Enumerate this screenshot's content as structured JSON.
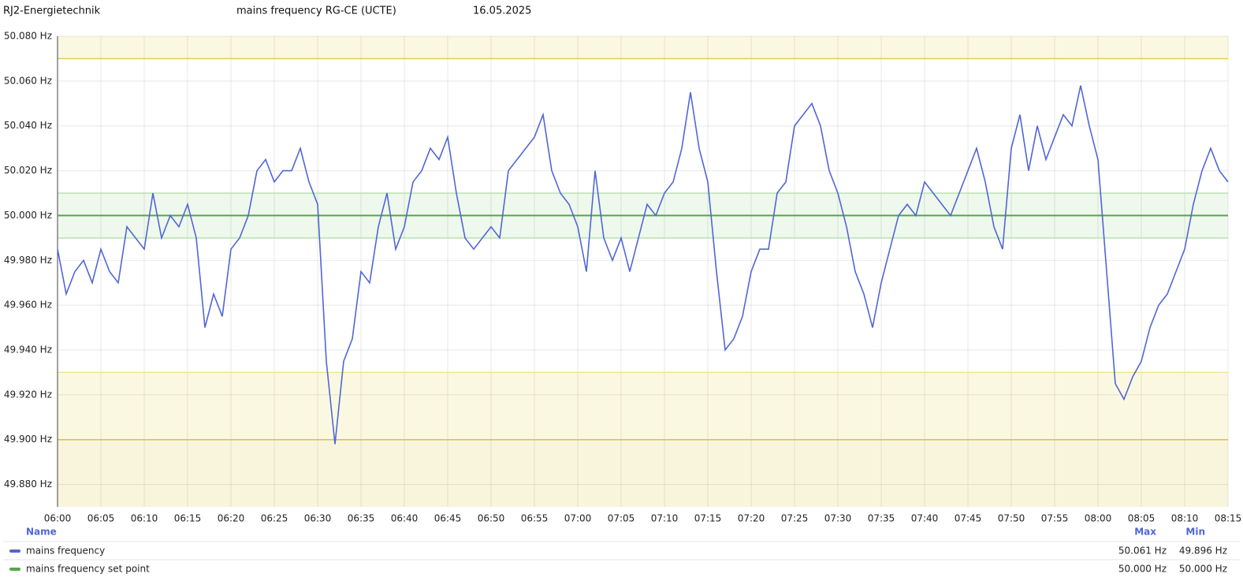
{
  "header": {
    "site": "RJ2-Energietechnik",
    "title": "mains frequency RG-CE (UCTE)",
    "date": "16.05.2025"
  },
  "chart_data": {
    "type": "line",
    "x": [
      "06:00",
      "06:01",
      "06:02",
      "06:03",
      "06:04",
      "06:05",
      "06:06",
      "06:07",
      "06:08",
      "06:09",
      "06:10",
      "06:11",
      "06:12",
      "06:13",
      "06:14",
      "06:15",
      "06:16",
      "06:17",
      "06:18",
      "06:19",
      "06:20",
      "06:21",
      "06:22",
      "06:23",
      "06:24",
      "06:25",
      "06:26",
      "06:27",
      "06:28",
      "06:29",
      "06:30",
      "06:31",
      "06:32",
      "06:33",
      "06:34",
      "06:35",
      "06:36",
      "06:37",
      "06:38",
      "06:39",
      "06:40",
      "06:41",
      "06:42",
      "06:43",
      "06:44",
      "06:45",
      "06:46",
      "06:47",
      "06:48",
      "06:49",
      "06:50",
      "06:51",
      "06:52",
      "06:53",
      "06:54",
      "06:55",
      "06:56",
      "06:57",
      "06:58",
      "06:59",
      "07:00",
      "07:01",
      "07:02",
      "07:03",
      "07:04",
      "07:05",
      "07:06",
      "07:07",
      "07:08",
      "07:09",
      "07:10",
      "07:11",
      "07:12",
      "07:13",
      "07:14",
      "07:15",
      "07:16",
      "07:17",
      "07:18",
      "07:19",
      "07:20",
      "07:21",
      "07:22",
      "07:23",
      "07:24",
      "07:25",
      "07:26",
      "07:27",
      "07:28",
      "07:29",
      "07:30",
      "07:31",
      "07:32",
      "07:33",
      "07:34",
      "07:35",
      "07:36",
      "07:37",
      "07:38",
      "07:39",
      "07:40",
      "07:41",
      "07:42",
      "07:43",
      "07:44",
      "07:45",
      "07:46",
      "07:47",
      "07:48",
      "07:49",
      "07:50",
      "07:51",
      "07:52",
      "07:53",
      "07:54",
      "07:55",
      "07:56",
      "07:57",
      "07:58",
      "07:59",
      "08:00",
      "08:01",
      "08:02",
      "08:03",
      "08:04",
      "08:05",
      "08:06",
      "08:07",
      "08:08",
      "08:09",
      "08:10",
      "08:11",
      "08:12",
      "08:13",
      "08:14",
      "08:15"
    ],
    "series": [
      {
        "name": "mains frequency",
        "color": "#5166d6",
        "values": [
          49.985,
          49.965,
          49.975,
          49.98,
          49.97,
          49.985,
          49.975,
          49.97,
          49.995,
          49.99,
          49.985,
          50.01,
          49.99,
          50.0,
          49.995,
          50.005,
          49.99,
          49.95,
          49.965,
          49.955,
          49.985,
          49.99,
          50.0,
          50.02,
          50.025,
          50.015,
          50.02,
          50.02,
          50.03,
          50.015,
          50.005,
          49.935,
          49.898,
          49.935,
          49.945,
          49.975,
          49.97,
          49.995,
          50.01,
          49.985,
          49.995,
          50.015,
          50.02,
          50.03,
          50.025,
          50.035,
          50.01,
          49.99,
          49.985,
          49.99,
          49.995,
          49.99,
          50.02,
          50.025,
          50.03,
          50.035,
          50.045,
          50.02,
          50.01,
          50.005,
          49.995,
          49.975,
          50.02,
          49.99,
          49.98,
          49.99,
          49.975,
          49.99,
          50.005,
          50.0,
          50.01,
          50.015,
          50.03,
          50.055,
          50.03,
          50.015,
          49.975,
          49.94,
          49.945,
          49.955,
          49.975,
          49.985,
          49.985,
          50.01,
          50.015,
          50.04,
          50.045,
          50.05,
          50.04,
          50.02,
          50.01,
          49.995,
          49.975,
          49.965,
          49.95,
          49.97,
          49.985,
          50.0,
          50.005,
          50.0,
          50.015,
          50.01,
          50.005,
          50.0,
          50.01,
          50.02,
          50.03,
          50.015,
          49.995,
          49.985,
          50.03,
          50.045,
          50.02,
          50.04,
          50.025,
          50.035,
          50.045,
          50.04,
          50.058,
          50.04,
          50.025,
          49.975,
          49.925,
          49.918,
          49.928,
          49.935,
          49.95,
          49.96,
          49.965,
          49.975,
          49.985,
          50.005,
          50.02,
          50.03,
          50.02,
          50.015
        ]
      },
      {
        "name": "mains frequency set point",
        "color": "#56a64b",
        "values": [
          50,
          50,
          50,
          50,
          50,
          50,
          50,
          50,
          50,
          50,
          50,
          50,
          50,
          50,
          50,
          50,
          50,
          50,
          50,
          50,
          50,
          50,
          50,
          50,
          50,
          50,
          50,
          50,
          50,
          50,
          50,
          50,
          50,
          50,
          50,
          50,
          50,
          50,
          50,
          50,
          50,
          50,
          50,
          50,
          50,
          50,
          50,
          50,
          50,
          50,
          50,
          50,
          50,
          50,
          50,
          50,
          50,
          50,
          50,
          50,
          50,
          50,
          50,
          50,
          50,
          50,
          50,
          50,
          50,
          50,
          50,
          50,
          50,
          50,
          50,
          50,
          50,
          50,
          50,
          50,
          50,
          50,
          50,
          50,
          50,
          50,
          50,
          50,
          50,
          50,
          50,
          50,
          50,
          50,
          50,
          50,
          50,
          50,
          50,
          50,
          50,
          50,
          50,
          50,
          50,
          50,
          50,
          50,
          50,
          50,
          50,
          50,
          50,
          50,
          50,
          50,
          50,
          50,
          50,
          50,
          50,
          50,
          50,
          50,
          50,
          50,
          50,
          50,
          50,
          50,
          50,
          50,
          50,
          50,
          50,
          50
        ]
      }
    ],
    "ylim": [
      49.87,
      50.08
    ],
    "yticks": [
      {
        "value": 50.08,
        "label": "50.080 Hz"
      },
      {
        "value": 50.06,
        "label": "50.060 Hz"
      },
      {
        "value": 50.04,
        "label": "50.040 Hz"
      },
      {
        "value": 50.02,
        "label": "50.020 Hz"
      },
      {
        "value": 50.0,
        "label": "50.000 Hz"
      },
      {
        "value": 49.98,
        "label": "49.980 Hz"
      },
      {
        "value": 49.96,
        "label": "49.960 Hz"
      },
      {
        "value": 49.94,
        "label": "49.940 Hz"
      },
      {
        "value": 49.92,
        "label": "49.920 Hz"
      },
      {
        "value": 49.9,
        "label": "49.900 Hz"
      },
      {
        "value": 49.88,
        "label": "49.880 Hz"
      }
    ],
    "xticks": [
      "06:00",
      "06:05",
      "06:10",
      "06:15",
      "06:20",
      "06:25",
      "06:30",
      "06:35",
      "06:40",
      "06:45",
      "06:50",
      "06:55",
      "07:00",
      "07:05",
      "07:10",
      "07:15",
      "07:20",
      "07:25",
      "07:30",
      "07:35",
      "07:40",
      "07:45",
      "07:50",
      "07:55",
      "08:00",
      "08:05",
      "08:10",
      "08:15"
    ],
    "grid": true,
    "bands": [
      {
        "from": 50.07,
        "to": 50.08,
        "fill": "#fbf8e1",
        "line": "#e2cd55"
      },
      {
        "from": 49.99,
        "to": 50.01,
        "fill": "#eef8ec",
        "line": "#b9e2b1"
      },
      {
        "from": 49.9,
        "to": 49.93,
        "fill": "#fbf8e1",
        "line": "#f0e592"
      },
      {
        "from": 49.87,
        "to": 49.9,
        "fill": "#f9f5dc",
        "line": "#d8c140"
      }
    ],
    "legend": {
      "headers": [
        "Name",
        "Max",
        "Min"
      ],
      "rows": [
        {
          "max": "50.061 Hz",
          "min": "49.896 Hz"
        },
        {
          "max": "50.000 Hz",
          "min": "50.000 Hz"
        }
      ]
    }
  }
}
